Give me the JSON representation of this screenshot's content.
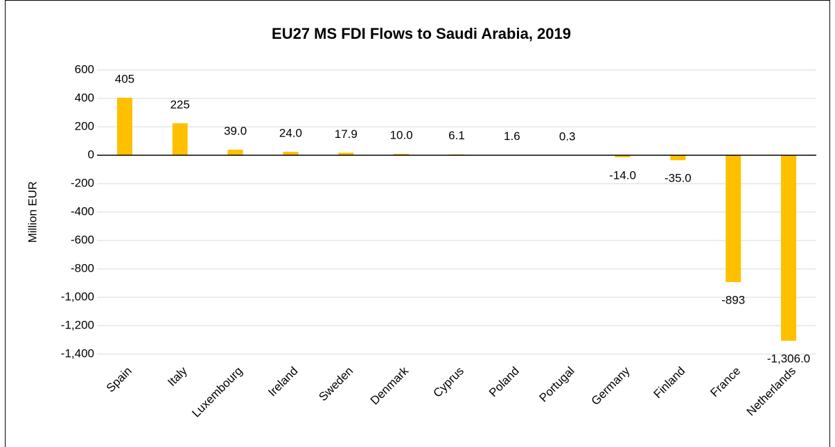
{
  "chart_data": {
    "type": "bar",
    "title": "EU27 MS FDI Flows to Saudi Arabia, 2019",
    "y_label": "Million EUR",
    "categories": [
      "Spain",
      "Italy",
      "Luxembourg",
      "Ireland",
      "Sweden",
      "Denmark",
      "Cyprus",
      "Poland",
      "Portugal",
      "Germany",
      "Finland",
      "France",
      "Netherlands"
    ],
    "values": [
      405,
      225,
      39,
      24,
      17.9,
      10,
      6.1,
      1.6,
      0.3,
      -14,
      -35,
      -893,
      -1306
    ],
    "value_labels": [
      "405",
      "225",
      "39.0",
      "24.0",
      "17.9",
      "10.0",
      "6.1",
      "1.6",
      "0.3",
      "-14.0",
      "-35.0",
      "-893",
      "-1,306.0"
    ],
    "color": "#ffc000",
    "ylim": [
      -1400,
      600
    ],
    "yticks": [
      600,
      400,
      200,
      0,
      -200,
      -400,
      -600,
      -800,
      {
        "value": -1000,
        "label": "-1,000"
      },
      {
        "value": -1200,
        "label": "-1,200"
      },
      {
        "value": -1400,
        "label": "-1,400"
      }
    ],
    "grid": true
  }
}
